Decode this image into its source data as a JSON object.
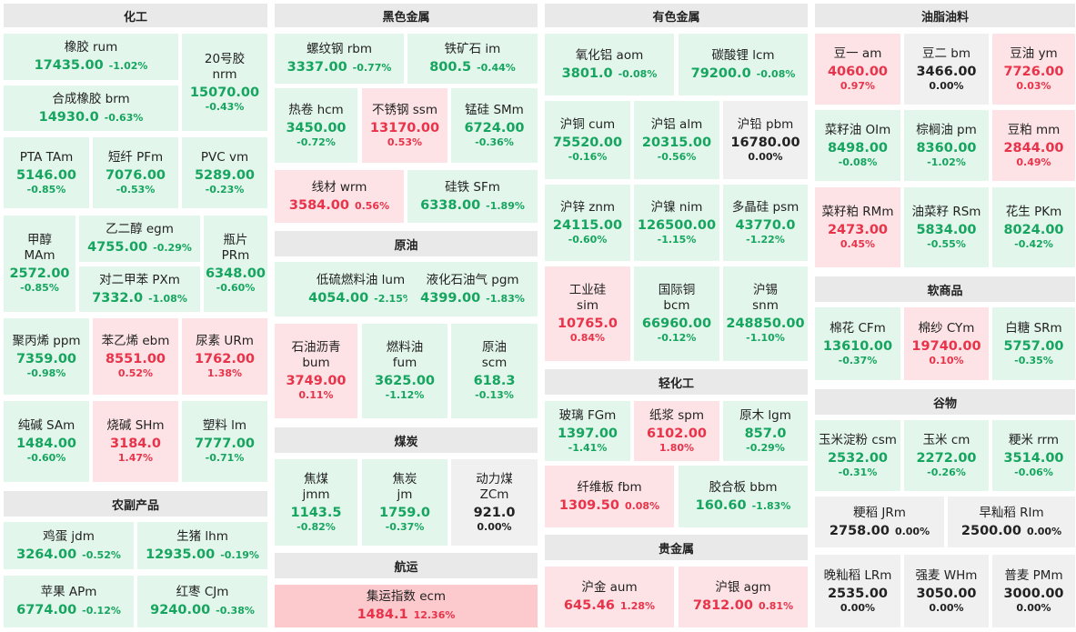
{
  "colors": {
    "up": "#e8334a",
    "down": "#16a55f",
    "flat": "#222222",
    "up_bg": "#fde3e5",
    "down_bg": "#e3f6ec",
    "flat_bg": "#f0f0f0",
    "header_bg": "#e9e9e9"
  },
  "sections": [
    {
      "id": "chem",
      "label": "化工"
    },
    {
      "id": "agri",
      "label": "农副产品"
    },
    {
      "id": "ferrous",
      "label": "黑色金属"
    },
    {
      "id": "crude",
      "label": "原油"
    },
    {
      "id": "coal",
      "label": "煤炭"
    },
    {
      "id": "ship",
      "label": "航运"
    },
    {
      "id": "nonferrous",
      "label": "有色金属"
    },
    {
      "id": "light",
      "label": "轻化工"
    },
    {
      "id": "precious",
      "label": "贵金属"
    },
    {
      "id": "oils",
      "label": "油脂油料"
    },
    {
      "id": "soft",
      "label": "软商品"
    },
    {
      "id": "grain",
      "label": "谷物"
    }
  ],
  "tiles": [
    {
      "lines": [
        "橡胶  rum"
      ],
      "price": "17435.00",
      "change": "-1.02%",
      "trend": "down"
    },
    {
      "lines": [
        "20号胶",
        "nrm"
      ],
      "price": "15070.00",
      "change": "-0.43%",
      "trend": "down"
    },
    {
      "lines": [
        "合成橡胶  brm"
      ],
      "price": "14930.0",
      "change": "-0.63%",
      "trend": "down"
    },
    {
      "lines": [
        "PTA  TAm"
      ],
      "price": "5146.00",
      "change": "-0.85%",
      "trend": "down"
    },
    {
      "lines": [
        "短纤  PFm"
      ],
      "price": "7076.00",
      "change": "-0.53%",
      "trend": "down"
    },
    {
      "lines": [
        "PVC  vm"
      ],
      "price": "5289.00",
      "change": "-0.23%",
      "trend": "down"
    },
    {
      "lines": [
        "甲醇",
        "MAm"
      ],
      "price": "2572.00",
      "change": "-0.85%",
      "trend": "down"
    },
    {
      "lines": [
        "乙二醇  egm"
      ],
      "price": "4755.00",
      "change": "-0.29%",
      "trend": "down"
    },
    {
      "lines": [
        "瓶片",
        "PRm"
      ],
      "price": "6348.00",
      "change": "-0.60%",
      "trend": "down"
    },
    {
      "lines": [
        "对二甲苯  PXm"
      ],
      "price": "7332.0",
      "change": "-1.08%",
      "trend": "down"
    },
    {
      "lines": [
        "聚丙烯  ppm"
      ],
      "price": "7359.00",
      "change": "-0.98%",
      "trend": "down"
    },
    {
      "lines": [
        "苯乙烯  ebm"
      ],
      "price": "8551.00",
      "change": "0.52%",
      "trend": "up"
    },
    {
      "lines": [
        "尿素  URm"
      ],
      "price": "1762.00",
      "change": "1.38%",
      "trend": "up"
    },
    {
      "lines": [
        "纯碱  SAm"
      ],
      "price": "1484.00",
      "change": "-0.60%",
      "trend": "down"
    },
    {
      "lines": [
        "烧碱  SHm"
      ],
      "price": "3184.0",
      "change": "1.47%",
      "trend": "up"
    },
    {
      "lines": [
        "塑料  lm"
      ],
      "price": "7777.00",
      "change": "-0.71%",
      "trend": "down"
    },
    {
      "lines": [
        "鸡蛋  jdm"
      ],
      "price": "3264.00",
      "change": "-0.52%",
      "trend": "down"
    },
    {
      "lines": [
        "生猪  lhm"
      ],
      "price": "12935.00",
      "change": "-0.19%",
      "trend": "down"
    },
    {
      "lines": [
        "苹果  APm"
      ],
      "price": "6774.00",
      "change": "-0.12%",
      "trend": "down"
    },
    {
      "lines": [
        "红枣  CJm"
      ],
      "price": "9240.00",
      "change": "-0.38%",
      "trend": "down"
    },
    {
      "lines": [
        "螺纹钢  rbm"
      ],
      "price": "3337.00",
      "change": "-0.77%",
      "trend": "down"
    },
    {
      "lines": [
        "铁矿石  im"
      ],
      "price": "800.5",
      "change": "-0.44%",
      "trend": "down"
    },
    {
      "lines": [
        "热卷  hcm"
      ],
      "price": "3450.00",
      "change": "-0.72%",
      "trend": "down"
    },
    {
      "lines": [
        "不锈钢  ssm"
      ],
      "price": "13170.00",
      "change": "0.53%",
      "trend": "up"
    },
    {
      "lines": [
        "锰硅  SMm"
      ],
      "price": "6724.00",
      "change": "-0.36%",
      "trend": "down"
    },
    {
      "lines": [
        "线材  wrm"
      ],
      "price": "3584.00",
      "change": "0.56%",
      "trend": "up"
    },
    {
      "lines": [
        "硅铁  SFm"
      ],
      "price": "6338.00",
      "change": "-1.89%",
      "trend": "down"
    },
    {
      "lines": [
        "低硫燃料油  lum"
      ],
      "price": "4054.00",
      "change": "-2.15%",
      "trend": "down"
    },
    {
      "lines": [
        "液化石油气  pgm"
      ],
      "price": "4399.00",
      "change": "-1.83%",
      "trend": "down"
    },
    {
      "lines": [
        "石油沥青",
        "bum"
      ],
      "price": "3749.00",
      "change": "0.11%",
      "trend": "up"
    },
    {
      "lines": [
        "燃料油",
        "fum"
      ],
      "price": "3625.00",
      "change": "-1.12%",
      "trend": "down"
    },
    {
      "lines": [
        "原油",
        "scm"
      ],
      "price": "618.3",
      "change": "-0.13%",
      "trend": "down"
    },
    {
      "lines": [
        "焦煤",
        "jmm"
      ],
      "price": "1143.5",
      "change": "-0.82%",
      "trend": "down"
    },
    {
      "lines": [
        "焦炭",
        "jm"
      ],
      "price": "1759.0",
      "change": "-0.37%",
      "trend": "down"
    },
    {
      "lines": [
        "动力煤",
        "ZCm"
      ],
      "price": "921.0",
      "change": "0.00%",
      "trend": "flat"
    },
    {
      "lines": [
        "集运指数  ecm"
      ],
      "price": "1484.1",
      "change": "12.36%",
      "trend": "strong"
    },
    {
      "lines": [
        "氧化铝  aom"
      ],
      "price": "3801.0",
      "change": "-0.08%",
      "trend": "down"
    },
    {
      "lines": [
        "碳酸锂  lcm"
      ],
      "price": "79200.0",
      "change": "-0.08%",
      "trend": "down"
    },
    {
      "lines": [
        "沪铜  cum"
      ],
      "price": "75520.00",
      "change": "-0.16%",
      "trend": "down"
    },
    {
      "lines": [
        "沪铝  alm"
      ],
      "price": "20315.00",
      "change": "-0.56%",
      "trend": "down"
    },
    {
      "lines": [
        "沪铅  pbm"
      ],
      "price": "16780.00",
      "change": "0.00%",
      "trend": "flat"
    },
    {
      "lines": [
        "沪锌  znm"
      ],
      "price": "24115.00",
      "change": "-0.60%",
      "trend": "down"
    },
    {
      "lines": [
        "沪镍  nim"
      ],
      "price": "126500.00",
      "change": "-1.15%",
      "trend": "down"
    },
    {
      "lines": [
        "多晶硅  psm"
      ],
      "price": "43770.0",
      "change": "-1.22%",
      "trend": "down"
    },
    {
      "lines": [
        "工业硅",
        "sim"
      ],
      "price": "10765.0",
      "change": "0.84%",
      "trend": "up"
    },
    {
      "lines": [
        "国际铜",
        "bcm"
      ],
      "price": "66960.00",
      "change": "-0.12%",
      "trend": "down"
    },
    {
      "lines": [
        "沪锡",
        "snm"
      ],
      "price": "248850.00",
      "change": "-1.10%",
      "trend": "down"
    },
    {
      "lines": [
        "玻璃  FGm"
      ],
      "price": "1397.00",
      "change": "-1.41%",
      "trend": "down"
    },
    {
      "lines": [
        "纸浆  spm"
      ],
      "price": "6102.00",
      "change": "1.80%",
      "trend": "up"
    },
    {
      "lines": [
        "原木  lgm"
      ],
      "price": "857.0",
      "change": "-0.29%",
      "trend": "down"
    },
    {
      "lines": [
        "纤维板  fbm"
      ],
      "price": "1309.50",
      "change": "0.08%",
      "trend": "up"
    },
    {
      "lines": [
        "胶合板  bbm"
      ],
      "price": "160.60",
      "change": "-1.83%",
      "trend": "down"
    },
    {
      "lines": [
        "沪金  aum"
      ],
      "price": "645.46",
      "change": "1.28%",
      "trend": "up"
    },
    {
      "lines": [
        "沪银  agm"
      ],
      "price": "7812.00",
      "change": "0.81%",
      "trend": "up"
    },
    {
      "lines": [
        "豆一  am"
      ],
      "price": "4060.00",
      "change": "0.97%",
      "trend": "up"
    },
    {
      "lines": [
        "豆二  bm"
      ],
      "price": "3466.00",
      "change": "0.00%",
      "trend": "flat"
    },
    {
      "lines": [
        "豆油  ym"
      ],
      "price": "7726.00",
      "change": "0.03%",
      "trend": "up"
    },
    {
      "lines": [
        "菜籽油  OIm"
      ],
      "price": "8498.00",
      "change": "-0.08%",
      "trend": "down"
    },
    {
      "lines": [
        "棕榈油  pm"
      ],
      "price": "8360.00",
      "change": "-1.02%",
      "trend": "down"
    },
    {
      "lines": [
        "豆粕  mm"
      ],
      "price": "2844.00",
      "change": "0.49%",
      "trend": "up"
    },
    {
      "lines": [
        "菜籽粕  RMm"
      ],
      "price": "2473.00",
      "change": "0.45%",
      "trend": "up"
    },
    {
      "lines": [
        "油菜籽  RSm"
      ],
      "price": "5834.00",
      "change": "-0.55%",
      "trend": "down"
    },
    {
      "lines": [
        "花生  PKm"
      ],
      "price": "8024.00",
      "change": "-0.42%",
      "trend": "down"
    },
    {
      "lines": [
        "棉花  CFm"
      ],
      "price": "13610.00",
      "change": "-0.37%",
      "trend": "down"
    },
    {
      "lines": [
        "棉纱  CYm"
      ],
      "price": "19740.00",
      "change": "0.10%",
      "trend": "up"
    },
    {
      "lines": [
        "白糖  SRm"
      ],
      "price": "5757.00",
      "change": "-0.35%",
      "trend": "down"
    },
    {
      "lines": [
        "玉米淀粉  csm"
      ],
      "price": "2532.00",
      "change": "-0.31%",
      "trend": "down"
    },
    {
      "lines": [
        "玉米  cm"
      ],
      "price": "2272.00",
      "change": "-0.26%",
      "trend": "down"
    },
    {
      "lines": [
        "粳米  rrm"
      ],
      "price": "3514.00",
      "change": "-0.06%",
      "trend": "down"
    },
    {
      "lines": [
        "粳稻  JRm"
      ],
      "price": "2758.00",
      "change": "0.00%",
      "trend": "flat"
    },
    {
      "lines": [
        "早籼稻  RIm"
      ],
      "price": "2500.00",
      "change": "0.00%",
      "trend": "flat"
    },
    {
      "lines": [
        "晚籼稻  LRm"
      ],
      "price": "2535.00",
      "change": "0.00%",
      "trend": "flat"
    },
    {
      "lines": [
        "强麦  WHm"
      ],
      "price": "3050.00",
      "change": "0.00%",
      "trend": "flat"
    },
    {
      "lines": [
        "普麦  PMm"
      ],
      "price": "3000.00",
      "change": "0.00%",
      "trend": "flat"
    }
  ]
}
